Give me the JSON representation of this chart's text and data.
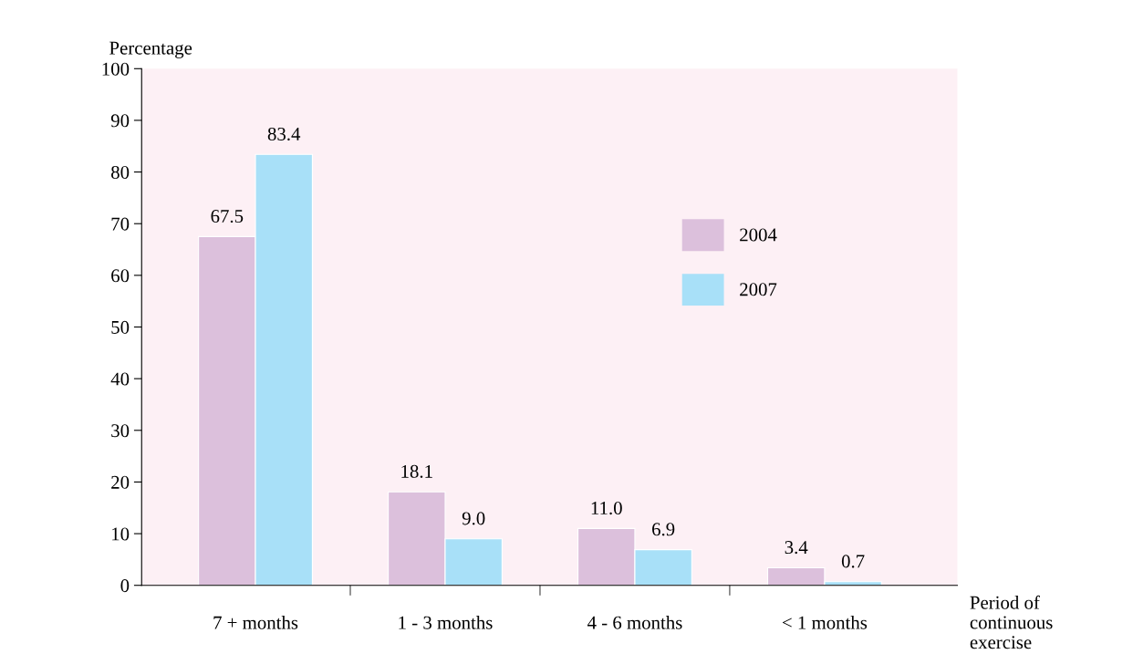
{
  "chart_data": {
    "type": "bar",
    "ylabel": "Percentage",
    "xlabel": "Period of\ncontinuous\nexercise",
    "categories": [
      "7 + months",
      "1 - 3 months",
      "4 - 6 months",
      "< 1 months"
    ],
    "series": [
      {
        "name": "2004",
        "color": "#dcc0dc",
        "values": [
          67.5,
          18.1,
          11.0,
          3.4
        ],
        "value_labels": [
          "67.5",
          "18.1",
          "11.0",
          "3.4"
        ]
      },
      {
        "name": "2007",
        "color": "#a8e0f8",
        "values": [
          83.4,
          9.0,
          6.9,
          0.7
        ],
        "value_labels": [
          "83.4",
          "9.0",
          "6.9",
          "0.7"
        ]
      }
    ],
    "ylim": [
      0,
      100
    ],
    "yticks": [
      0,
      10,
      20,
      30,
      40,
      50,
      60,
      70,
      80,
      90,
      100
    ],
    "grid": false,
    "legend": "center right"
  }
}
